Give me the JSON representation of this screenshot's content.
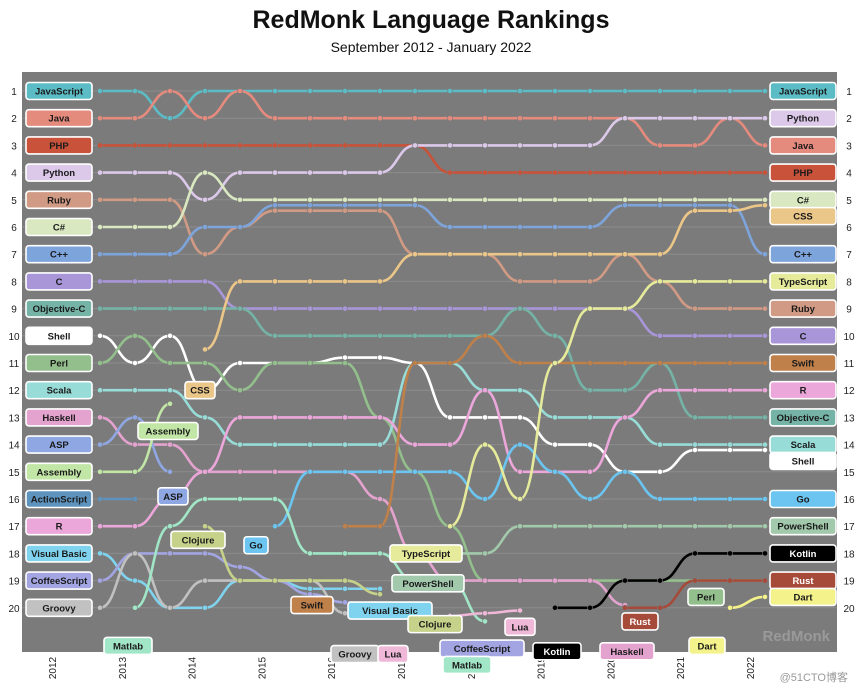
{
  "header": {
    "title": "RedMonk Language Rankings",
    "subtitle": "September 2012 - January 2022"
  },
  "watermark": "@51CTO博客",
  "chart_data": {
    "type": "line",
    "title": "RedMonk Language Rankings",
    "subtitle": "September 2012 - January 2022",
    "brand": "RedMonk",
    "x_ticks": [
      "2012",
      "2013",
      "2014",
      "2015",
      "2016",
      "2017",
      "2018",
      "2019",
      "2020",
      "2021",
      "2022"
    ],
    "y_ticks": [
      1,
      2,
      3,
      4,
      5,
      6,
      7,
      8,
      9,
      10,
      11,
      12,
      13,
      14,
      15,
      16,
      17,
      18,
      19,
      20
    ],
    "ylim": [
      1,
      20
    ],
    "y_inverted": true,
    "periods": [
      "2012 Q3",
      "2013 Q1",
      "2013 Q3",
      "2014 Q1",
      "2014 Q3",
      "2015 Q1",
      "2015 Q3",
      "2016 Q1",
      "2016 Q3",
      "2017 Q1",
      "2017 Q3",
      "2018 Q1",
      "2018 Q3",
      "2019 Q1",
      "2019 Q3",
      "2020 Q1",
      "2020 Q3",
      "2021 Q1",
      "2021 Q3",
      "2022 Q1"
    ],
    "series": [
      {
        "name": "JavaScript",
        "color": "#5bbcc6",
        "values": [
          1,
          1,
          2,
          1,
          1,
          1,
          1,
          1,
          1,
          1,
          1,
          1,
          1,
          1,
          1,
          1,
          1,
          1,
          1,
          1
        ],
        "start_rank": 1,
        "end_rank": 1,
        "end_label_rank": 1
      },
      {
        "name": "Java",
        "color": "#e58b7e",
        "values": [
          2,
          2,
          1,
          2,
          1,
          2,
          2,
          2,
          2,
          2,
          2,
          2,
          2,
          2,
          2,
          2,
          3,
          3,
          2,
          3
        ],
        "start_rank": 2,
        "end_rank": 3,
        "end_label_rank": 3
      },
      {
        "name": "PHP",
        "color": "#c8523a",
        "values": [
          3,
          3,
          3,
          3,
          3,
          3,
          3,
          3,
          3,
          3,
          4,
          4,
          4,
          4,
          4,
          4,
          4,
          4,
          4,
          4
        ],
        "start_rank": 3,
        "end_rank": 4,
        "end_label_rank": 4
      },
      {
        "name": "Python",
        "color": "#dcc9ea",
        "values": [
          4,
          4,
          4,
          5,
          4,
          4,
          4,
          4,
          4,
          3,
          3,
          3,
          3,
          3,
          3,
          2,
          2,
          2,
          2,
          2
        ],
        "start_rank": 4,
        "end_rank": 2,
        "end_label_rank": 2
      },
      {
        "name": "Ruby",
        "color": "#d19a84",
        "values": [
          5,
          5,
          5,
          7,
          6,
          5.4,
          5.4,
          5.4,
          5.4,
          7,
          7,
          7,
          8,
          8,
          8,
          7,
          8,
          9,
          9,
          9
        ],
        "start_rank": 5,
        "end_rank": 9,
        "end_label_rank": 9
      },
      {
        "name": "C#",
        "color": "#d9e8c0",
        "values": [
          6,
          6,
          6,
          4,
          5,
          5,
          5,
          5,
          5,
          5,
          5,
          5,
          5,
          5,
          5,
          5,
          5,
          5,
          5,
          5
        ],
        "start_rank": 6,
        "end_rank": 5,
        "end_label_rank": 5
      },
      {
        "name": "C++",
        "color": "#7ea4dc",
        "values": [
          7,
          7,
          7,
          6,
          6,
          5.2,
          5.2,
          5.2,
          5.2,
          5.2,
          6,
          6,
          6,
          6,
          6,
          5.2,
          5.2,
          5.2,
          5.2,
          7
        ],
        "start_rank": 7,
        "end_rank": 7,
        "end_label_rank": 7
      },
      {
        "name": "C",
        "color": "#a896d9",
        "values": [
          8,
          8,
          8,
          8,
          9,
          9,
          9,
          9,
          9,
          9,
          9,
          9,
          9,
          9,
          9,
          9,
          10,
          10,
          10,
          10
        ],
        "start_rank": 8,
        "end_rank": 10,
        "end_label_rank": 10
      },
      {
        "name": "Objective-C",
        "color": "#74b3a6",
        "values": [
          9,
          9,
          9,
          9,
          9,
          10,
          10,
          10,
          10,
          10,
          10,
          10,
          9,
          10,
          12,
          12,
          11,
          13,
          13,
          13
        ],
        "start_rank": 9,
        "end_rank": 13,
        "end_label_rank": 13
      },
      {
        "name": "Shell",
        "color": "#ffffff",
        "values": [
          10,
          11,
          10,
          12,
          11,
          11,
          11,
          10.8,
          10.8,
          11,
          13,
          13,
          13,
          14,
          14,
          15,
          15,
          14.2,
          14.2,
          14.2
        ],
        "start_rank": 10,
        "end_rank": 14.2,
        "end_label_rank": 14.6
      },
      {
        "name": "Perl",
        "color": "#93bf8c",
        "values": [
          11,
          10,
          11,
          11,
          12,
          11,
          11,
          11,
          13,
          15,
          17,
          19,
          19,
          19,
          19,
          19,
          19,
          19,
          19,
          19
        ],
        "start_rank": 11,
        "end_rank": 19,
        "end_label_rank": 18.5
      },
      {
        "name": "Scala",
        "color": "#97dcd7",
        "values": [
          12,
          12,
          12,
          13,
          14,
          14,
          14,
          14,
          14,
          11,
          11,
          12,
          12,
          13,
          13,
          13,
          14,
          14,
          14,
          14
        ],
        "start_rank": 12,
        "end_rank": 14,
        "end_label_rank": 14
      },
      {
        "name": "Haskell",
        "color": "#e4a3cf",
        "values": [
          13,
          14,
          14,
          15,
          15,
          15,
          15,
          15,
          16,
          18,
          19,
          19,
          19,
          19,
          19,
          19.9,
          null,
          null,
          null,
          null
        ],
        "start_rank": 13,
        "end_rank": 19.9,
        "end_label_rank": 20.5
      },
      {
        "name": "ASP",
        "color": "#8fa7e2",
        "values": [
          14,
          13,
          15,
          null,
          null,
          null,
          null,
          null,
          null,
          null,
          null,
          null,
          null,
          null,
          null,
          null,
          null,
          null,
          null,
          null
        ],
        "start_rank": 14,
        "end_rank": 15,
        "end_label_rank": 15
      },
      {
        "name": "Assembly",
        "color": "#c2e6a6",
        "values": [
          15,
          15,
          12.5,
          null,
          null,
          null,
          null,
          null,
          null,
          null,
          null,
          null,
          null,
          null,
          null,
          null,
          null,
          null,
          null,
          null
        ],
        "start_rank": 15,
        "end_rank": 12.5,
        "end_label_rank": 12.5
      },
      {
        "name": "ActionScript",
        "color": "#5e93bd",
        "values": [
          16,
          16,
          null,
          null,
          null,
          null,
          null,
          null,
          null,
          null,
          null,
          null,
          null,
          null,
          null,
          null,
          null,
          null,
          null,
          null
        ],
        "start_rank": 16,
        "end_rank": 16,
        "end_label_rank": 16
      },
      {
        "name": "R",
        "color": "#eba6da",
        "values": [
          17,
          17,
          16,
          15,
          13,
          13,
          13,
          13,
          13,
          14,
          14,
          12,
          15,
          15,
          15,
          13,
          12,
          12,
          12,
          12
        ],
        "start_rank": 17,
        "end_rank": 12,
        "end_label_rank": 12
      },
      {
        "name": "Visual Basic",
        "color": "#7fd3ee",
        "values": [
          18,
          19,
          20,
          20,
          19,
          19,
          19.3,
          19.3,
          19.3,
          null,
          null,
          null,
          null,
          null,
          null,
          null,
          null,
          null,
          null,
          null
        ],
        "start_rank": 18,
        "end_rank": 19.3,
        "end_label_rank": 18.6
      },
      {
        "name": "CoffeeScript",
        "color": "#a3a5e2",
        "values": [
          19,
          18,
          18,
          18,
          18.5,
          19,
          19.5,
          19.8,
          20,
          20.2,
          null,
          null,
          null,
          null,
          null,
          null,
          null,
          null,
          null,
          null
        ],
        "start_rank": 19,
        "end_rank": 20.2,
        "end_label_rank": 20.5
      },
      {
        "name": "Groovy",
        "color": "#c1c1c1",
        "values": [
          20,
          18,
          20,
          19,
          19,
          19,
          19,
          20.2,
          null,
          null,
          null,
          null,
          null,
          null,
          null,
          null,
          null,
          null,
          null,
          null
        ],
        "start_rank": 20,
        "end_rank": 20.2,
        "end_label_rank": 20.7
      },
      {
        "name": "CSS",
        "color": "#ebc689",
        "values": [
          null,
          null,
          null,
          10.5,
          8,
          8,
          8,
          8,
          8,
          7,
          7,
          7,
          7,
          7,
          7,
          7,
          7,
          5.4,
          5.4,
          5.2
        ],
        "start_rank": 10.5,
        "end_rank": 5.2,
        "end_label_rank": 5.6
      },
      {
        "name": "Clojure",
        "color": "#c6d28a",
        "values": [
          null,
          null,
          null,
          17,
          19,
          19,
          19,
          19,
          19.5,
          null,
          null,
          null,
          null,
          null,
          null,
          null,
          null,
          null,
          null,
          null
        ],
        "start_rank": 17,
        "end_rank": 19.5,
        "end_label_rank": 19.6
      },
      {
        "name": "Go",
        "color": "#6bc5f0",
        "values": [
          null,
          null,
          null,
          null,
          null,
          17,
          15,
          15,
          15,
          15,
          15,
          16,
          14,
          15,
          16,
          15,
          16,
          16,
          16,
          16
        ],
        "start_rank": 17,
        "end_rank": 16,
        "end_label_rank": 16
      },
      {
        "name": "Swift",
        "color": "#c0804a",
        "values": [
          null,
          null,
          null,
          null,
          null,
          null,
          null,
          17,
          17,
          11,
          11,
          10,
          11,
          11,
          11,
          11,
          11,
          11,
          11,
          11
        ],
        "start_rank": 17,
        "end_rank": 11,
        "end_label_rank": 11
      },
      {
        "name": "Matlab",
        "color": "#a1e6c7",
        "values": [
          null,
          20,
          17,
          16,
          16,
          16,
          18,
          18,
          18,
          19,
          19,
          20.5,
          null,
          null,
          null,
          null,
          null,
          null,
          null,
          null
        ],
        "start_rank": 20,
        "end_rank": 20.5,
        "end_label_rank": 21.1
      },
      {
        "name": "TypeScript",
        "color": "#e6eb9b",
        "values": [
          null,
          null,
          null,
          null,
          null,
          null,
          null,
          null,
          null,
          null,
          17,
          14,
          16,
          11,
          9,
          9,
          8,
          8,
          8,
          8
        ],
        "start_rank": 17,
        "end_rank": 8,
        "end_label_rank": 8
      },
      {
        "name": "PowerShell",
        "color": "#a2c9ab",
        "values": [
          null,
          null,
          null,
          null,
          null,
          null,
          null,
          null,
          null,
          null,
          18,
          18,
          17,
          17,
          17,
          17,
          17,
          17,
          17,
          17
        ],
        "start_rank": 18,
        "end_rank": 17,
        "end_label_rank": 17
      },
      {
        "name": "Lua",
        "color": "#f0b8d8",
        "values": [
          null,
          null,
          null,
          null,
          null,
          null,
          null,
          null,
          null,
          null,
          20.3,
          20.2,
          20.1,
          null,
          null,
          null,
          null,
          null,
          null,
          null
        ],
        "start_rank": 20.3,
        "end_rank": 20.1,
        "end_label_rank": 19.6
      },
      {
        "name": "Kotlin",
        "color": "#000000",
        "values": [
          null,
          null,
          null,
          null,
          null,
          null,
          null,
          null,
          null,
          null,
          null,
          null,
          null,
          20,
          20,
          19,
          19,
          18,
          18,
          18
        ],
        "start_rank": 20,
        "end_rank": 18,
        "end_label_rank": 18
      },
      {
        "name": "Rust",
        "color": "#a64a3a",
        "values": [
          null,
          null,
          null,
          null,
          null,
          null,
          null,
          null,
          null,
          null,
          null,
          null,
          null,
          null,
          null,
          20,
          20,
          19,
          19,
          19
        ],
        "start_rank": 20,
        "end_rank": 19,
        "end_label_rank": 19
      },
      {
        "name": "Dart",
        "color": "#f4f28a",
        "values": [
          null,
          null,
          null,
          null,
          null,
          null,
          null,
          null,
          null,
          null,
          null,
          null,
          null,
          null,
          null,
          null,
          null,
          null,
          20,
          19.6
        ],
        "start_rank": 20,
        "end_rank": 19.6,
        "end_label_rank": 19.6
      }
    ],
    "start_labels": [
      "JavaScript",
      "Java",
      "PHP",
      "Python",
      "Ruby",
      "C#",
      "C++",
      "C",
      "Objective-C",
      "Shell",
      "Perl",
      "Scala",
      "Haskell",
      "ASP",
      "Assembly",
      "ActionScript",
      "R",
      "Visual Basic",
      "CoffeeScript",
      "Groovy"
    ],
    "end_labels": [
      "JavaScript",
      "Python",
      "Java",
      "PHP",
      "C#",
      "CSS",
      "C++",
      "TypeScript",
      "Ruby",
      "C",
      "Swift",
      "R",
      "Objective-C",
      "Scala",
      "Shell",
      "Go",
      "PowerShell",
      "Kotlin",
      "Rust",
      "Dart"
    ],
    "annotations": [
      {
        "text": "CSS",
        "series": "CSS",
        "rank": 12.0
      },
      {
        "text": "Assembly",
        "series": "Assembly",
        "rank": 13.5
      },
      {
        "text": "ASP",
        "series": "ASP",
        "rank": 15.9
      },
      {
        "text": "Clojure",
        "series": "Clojure",
        "rank": 17.5
      },
      {
        "text": "Go",
        "series": "Go",
        "rank": 17.7
      },
      {
        "text": "Swift",
        "series": "Swift",
        "rank": 19.9
      },
      {
        "text": "Visual Basic",
        "series": "Visual Basic",
        "rank": 20.1
      },
      {
        "text": "Matlab",
        "series": "Matlab",
        "rank": 21.4
      },
      {
        "text": "Groovy",
        "series": "Groovy",
        "rank": 21.7
      },
      {
        "text": "Lua",
        "series": "Lua",
        "rank": 21.7
      },
      {
        "text": "Clojure",
        "series": "Clojure",
        "rank": 20.6
      },
      {
        "text": "CoffeeScript",
        "series": "CoffeeScript",
        "rank": 21.5
      },
      {
        "text": "Matlab",
        "series": "Matlab",
        "rank": 22.1
      },
      {
        "text": "TypeScript",
        "series": "TypeScript",
        "rank": 18.0
      },
      {
        "text": "PowerShell",
        "series": "PowerShell",
        "rank": 19.1
      },
      {
        "text": "Lua",
        "series": "Lua",
        "rank": 20.7
      },
      {
        "text": "Kotlin",
        "series": "Kotlin",
        "rank": 21.6
      },
      {
        "text": "Haskell",
        "series": "Haskell",
        "rank": 21.6
      },
      {
        "text": "Rust",
        "series": "Rust",
        "rank": 20.5
      },
      {
        "text": "Perl",
        "series": "Perl",
        "rank": 19.6
      },
      {
        "text": "Dart",
        "series": "Dart",
        "rank": 21.4
      }
    ]
  }
}
